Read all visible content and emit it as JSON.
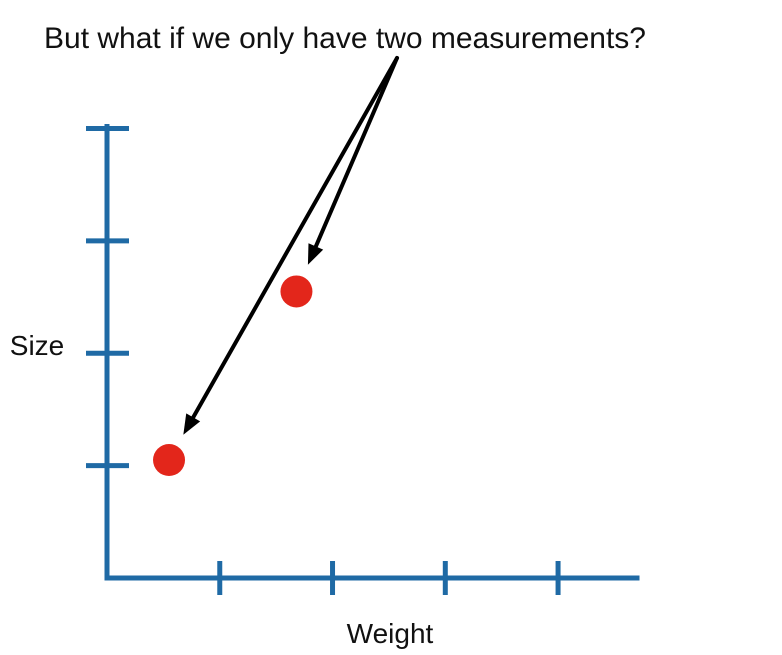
{
  "annotation": {
    "text": "But what if we only have two measurements?"
  },
  "colors": {
    "axis": "#1f6aa5",
    "point": "#e3261b",
    "arrow": "#000000",
    "text": "#111111"
  },
  "chart_data": {
    "type": "scatter",
    "title": "",
    "xlabel": "Weight",
    "ylabel": "Size",
    "xlim": [
      0,
      4.7
    ],
    "ylim": [
      0,
      4.04
    ],
    "x_ticks": [
      1,
      2,
      3,
      4
    ],
    "y_ticks": [
      1,
      2,
      3,
      4
    ],
    "tick_labels_shown": false,
    "grid": false,
    "legend": "none",
    "series": [
      {
        "points": [
          {
            "x": 0.55,
            "y": 1.05
          },
          {
            "x": 1.68,
            "y": 2.55
          }
        ]
      }
    ]
  }
}
